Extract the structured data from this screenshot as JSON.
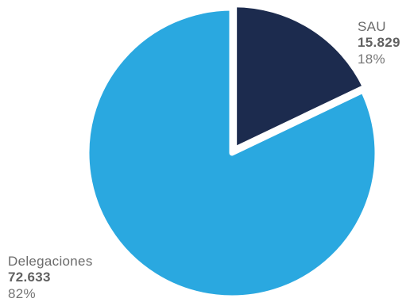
{
  "chart_data": {
    "type": "pie",
    "slices": [
      {
        "name": "SAU",
        "value_label": "15.829",
        "percent_label": "18%",
        "value": 15829,
        "color": "#1c2b4e"
      },
      {
        "name": "Delegaciones",
        "value_label": "72.633",
        "percent_label": "82%",
        "value": 72633,
        "color": "#2aa8e0"
      }
    ],
    "title": "",
    "legend": "none"
  }
}
